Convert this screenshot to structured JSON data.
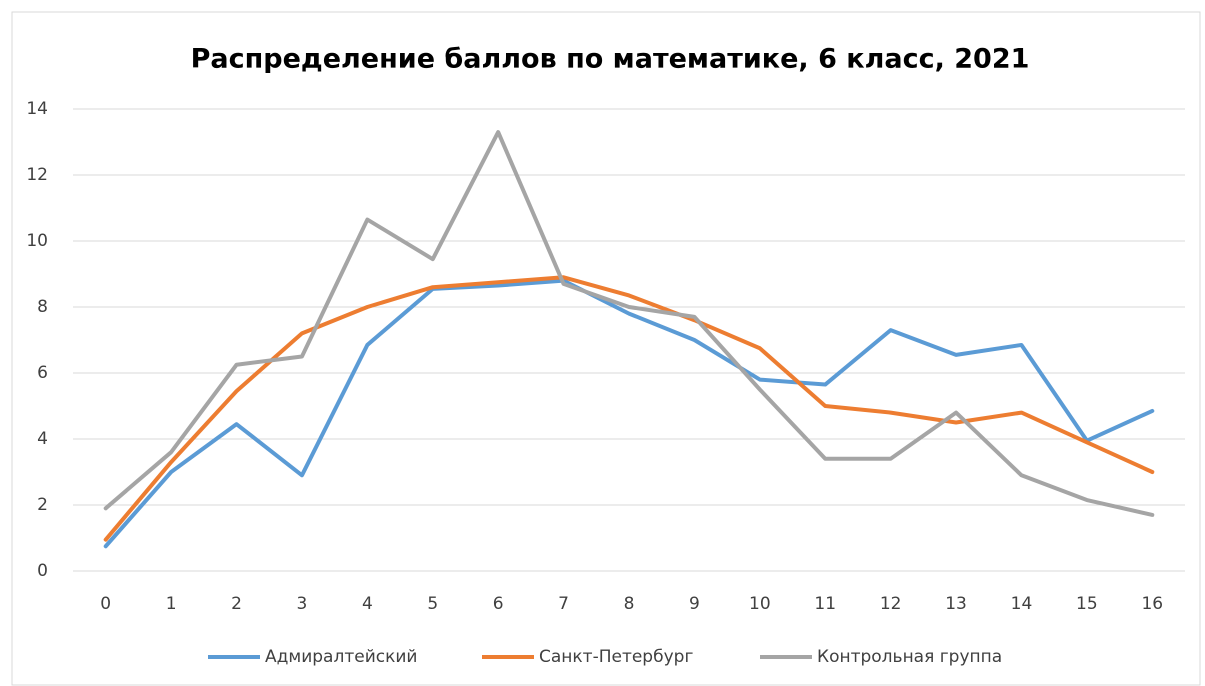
{
  "chart_data": {
    "type": "line",
    "title": "Распределение баллов по математике, 6 класс, 2021",
    "categories": [
      "0",
      "1",
      "2",
      "3",
      "4",
      "5",
      "6",
      "7",
      "8",
      "9",
      "10",
      "11",
      "12",
      "13",
      "14",
      "15",
      "16"
    ],
    "series": [
      {
        "name": "Адмиралтейский",
        "color": "#5b9bd5",
        "values": [
          0.75,
          3.0,
          4.45,
          2.9,
          6.85,
          8.55,
          8.65,
          8.8,
          7.8,
          7.0,
          5.8,
          5.65,
          7.3,
          6.55,
          6.85,
          3.95,
          4.85
        ]
      },
      {
        "name": "Санкт-Петербург",
        "color": "#ed7d31",
        "values": [
          0.95,
          3.3,
          5.45,
          7.2,
          8.0,
          8.6,
          8.75,
          8.9,
          8.35,
          7.6,
          6.75,
          5.0,
          4.8,
          4.5,
          4.8,
          3.9,
          3.0
        ]
      },
      {
        "name": "Контрольная группа",
        "color": "#a5a5a5",
        "values": [
          1.9,
          3.6,
          6.25,
          6.5,
          10.65,
          9.45,
          13.3,
          8.7,
          8.0,
          7.7,
          5.5,
          3.4,
          3.4,
          4.8,
          2.9,
          2.15,
          1.7
        ]
      }
    ],
    "ylim": [
      0,
      14
    ],
    "yticks": [
      0,
      2,
      4,
      6,
      8,
      10,
      12,
      14
    ],
    "grid": true,
    "legend": "bottom"
  }
}
